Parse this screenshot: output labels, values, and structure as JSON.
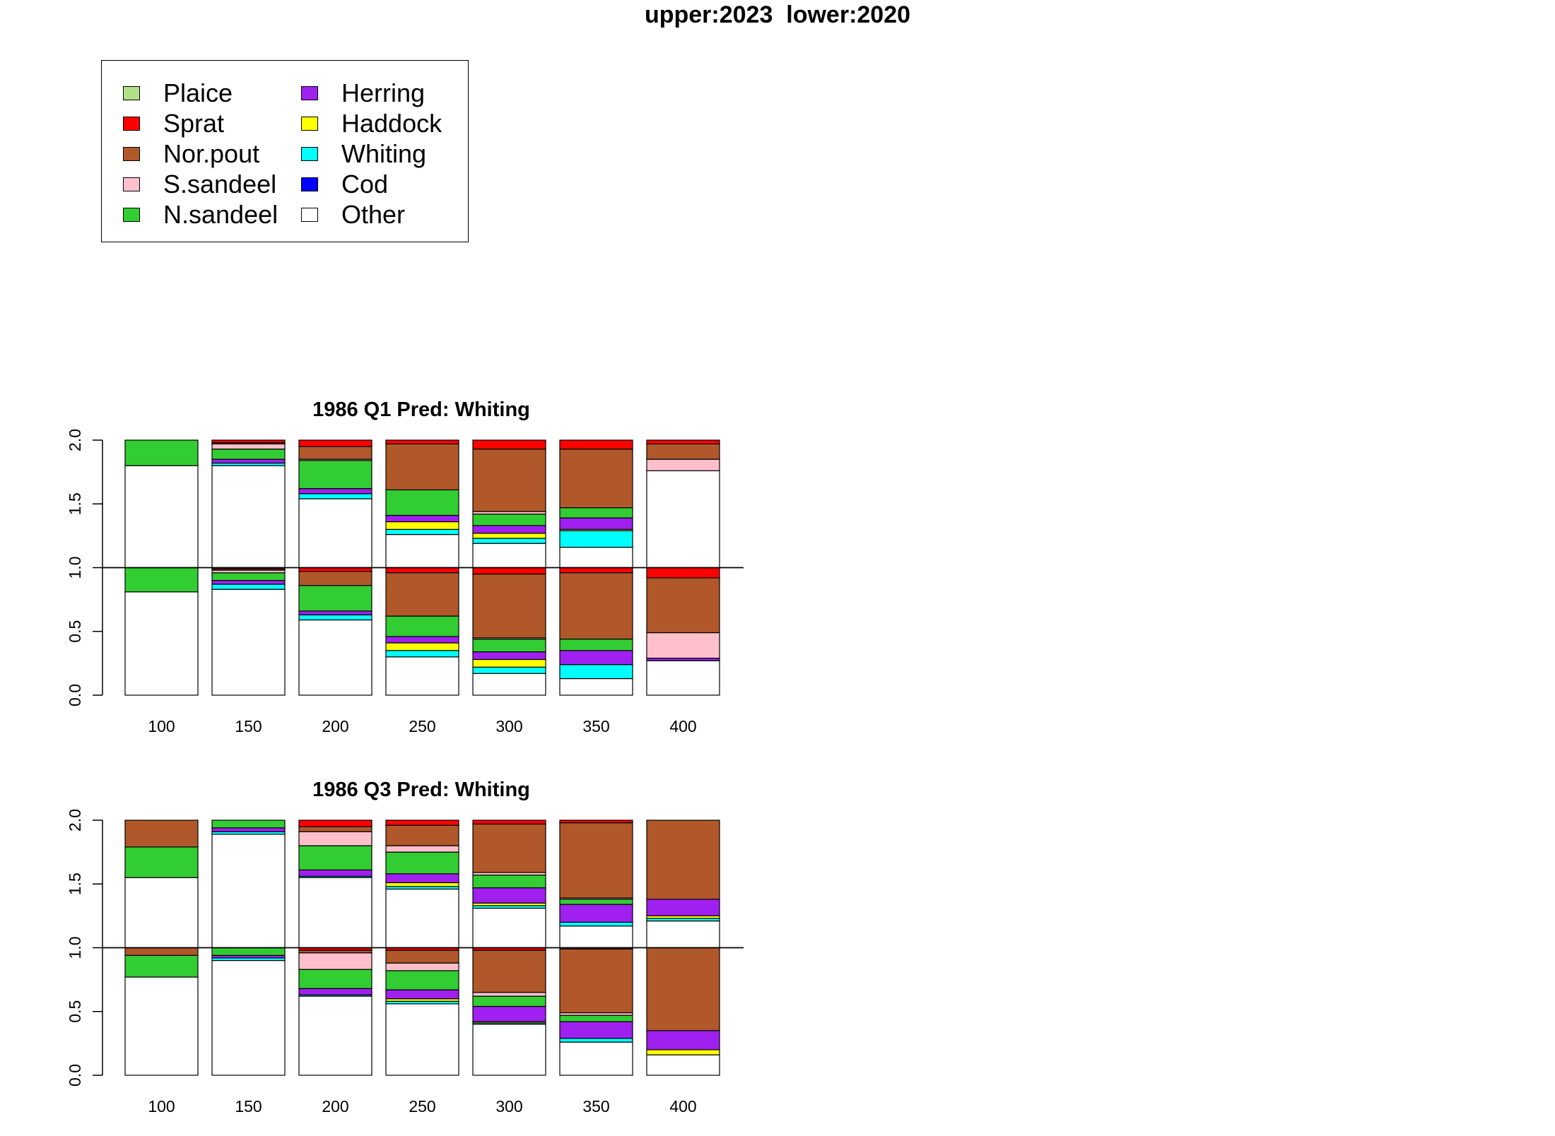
{
  "title": "upper:2023  lower:2020",
  "colors": {
    "Plaice": "#b2df8a",
    "Sprat": "#ff0000",
    "Nor.pout": "#b0582a",
    "S.sandeel": "#ffc0cb",
    "N.sandeel": "#32cd32",
    "Herring": "#a020f0",
    "Haddock": "#ffff00",
    "Whiting": "#00ffff",
    "Cod": "#0000ff",
    "Other": "#ffffff"
  },
  "legend": {
    "col1": [
      "Plaice",
      "Sprat",
      "Nor.pout",
      "S.sandeel",
      "N.sandeel"
    ],
    "col2": [
      "Herring",
      "Haddock",
      "Whiting",
      "Cod",
      "Other"
    ]
  },
  "chart_data": [
    {
      "type": "bar",
      "title": "1986 Q1  Pred: Whiting",
      "categories": [
        "100",
        "150",
        "200",
        "250",
        "300",
        "350",
        "400"
      ],
      "ylim": [
        0,
        2
      ],
      "yticks": [
        "0.0",
        "0.5",
        "1.0",
        "1.5",
        "2.0"
      ],
      "stack_order": [
        "Other",
        "Cod",
        "Whiting",
        "Haddock",
        "Herring",
        "N.sandeel",
        "S.sandeel",
        "Nor.pout",
        "Sprat",
        "Plaice"
      ],
      "upper_label": "2023",
      "lower_label": "2020",
      "upper": [
        {
          "Other": 0.8,
          "Whiting": 0.0,
          "Haddock": 0.0,
          "Herring": 0.0,
          "N.sandeel": 0.2,
          "S.sandeel": 0.0,
          "Nor.pout": 0.0,
          "Sprat": 0.0
        },
        {
          "Other": 0.8,
          "Whiting": 0.02,
          "Haddock": 0.0,
          "Herring": 0.03,
          "N.sandeel": 0.08,
          "S.sandeel": 0.04,
          "Nor.pout": 0.01,
          "Sprat": 0.02
        },
        {
          "Other": 0.54,
          "Whiting": 0.04,
          "Haddock": 0.0,
          "Herring": 0.04,
          "N.sandeel": 0.22,
          "S.sandeel": 0.01,
          "Nor.pout": 0.1,
          "Sprat": 0.05
        },
        {
          "Other": 0.26,
          "Whiting": 0.04,
          "Haddock": 0.06,
          "Herring": 0.05,
          "N.sandeel": 0.2,
          "S.sandeel": 0.0,
          "Nor.pout": 0.36,
          "Sprat": 0.03
        },
        {
          "Other": 0.19,
          "Whiting": 0.04,
          "Haddock": 0.04,
          "Herring": 0.06,
          "N.sandeel": 0.09,
          "S.sandeel": 0.02,
          "Nor.pout": 0.49,
          "Sprat": 0.07
        },
        {
          "Other": 0.16,
          "Whiting": 0.13,
          "Haddock": 0.01,
          "Herring": 0.09,
          "N.sandeel": 0.08,
          "S.sandeel": 0.0,
          "Nor.pout": 0.46,
          "Sprat": 0.07
        },
        {
          "Other": 0.76,
          "Whiting": 0.0,
          "Haddock": 0.0,
          "Herring": 0.0,
          "N.sandeel": 0.0,
          "S.sandeel": 0.09,
          "Nor.pout": 0.12,
          "Sprat": 0.03
        }
      ],
      "lower": [
        {
          "Other": 0.81,
          "Whiting": 0.0,
          "Haddock": 0.0,
          "Herring": 0.0,
          "N.sandeel": 0.19,
          "S.sandeel": 0.0,
          "Nor.pout": 0.0,
          "Sprat": 0.0
        },
        {
          "Other": 0.83,
          "Whiting": 0.04,
          "Haddock": 0.0,
          "Herring": 0.03,
          "N.sandeel": 0.06,
          "S.sandeel": 0.02,
          "Nor.pout": 0.01,
          "Sprat": 0.01
        },
        {
          "Other": 0.59,
          "Whiting": 0.04,
          "Haddock": 0.0,
          "Herring": 0.03,
          "N.sandeel": 0.2,
          "S.sandeel": 0.0,
          "Nor.pout": 0.11,
          "Sprat": 0.03
        },
        {
          "Other": 0.3,
          "Whiting": 0.05,
          "Haddock": 0.06,
          "Herring": 0.05,
          "N.sandeel": 0.16,
          "S.sandeel": 0.0,
          "Nor.pout": 0.34,
          "Sprat": 0.04
        },
        {
          "Other": 0.17,
          "Whiting": 0.05,
          "Haddock": 0.06,
          "Herring": 0.06,
          "N.sandeel": 0.1,
          "S.sandeel": 0.01,
          "Nor.pout": 0.5,
          "Sprat": 0.05
        },
        {
          "Other": 0.13,
          "Whiting": 0.11,
          "Haddock": 0.0,
          "Herring": 0.11,
          "N.sandeel": 0.09,
          "S.sandeel": 0.0,
          "Nor.pout": 0.52,
          "Sprat": 0.04
        },
        {
          "Other": 0.27,
          "Whiting": 0.0,
          "Haddock": 0.0,
          "Herring": 0.02,
          "N.sandeel": 0.0,
          "S.sandeel": 0.2,
          "Nor.pout": 0.43,
          "Sprat": 0.08
        }
      ]
    },
    {
      "type": "bar",
      "title": "1986 Q3  Pred: Whiting",
      "categories": [
        "100",
        "150",
        "200",
        "250",
        "300",
        "350",
        "400"
      ],
      "ylim": [
        0,
        2
      ],
      "yticks": [
        "0.0",
        "0.5",
        "1.0",
        "1.5",
        "2.0"
      ],
      "stack_order": [
        "Other",
        "Cod",
        "Whiting",
        "Haddock",
        "Herring",
        "N.sandeel",
        "S.sandeel",
        "Nor.pout",
        "Sprat",
        "Plaice"
      ],
      "upper_label": "2023",
      "lower_label": "2020",
      "upper": [
        {
          "Other": 0.55,
          "Whiting": 0.0,
          "Haddock": 0.0,
          "Herring": 0.0,
          "N.sandeel": 0.24,
          "S.sandeel": 0.0,
          "Nor.pout": 0.21,
          "Sprat": 0.0
        },
        {
          "Other": 0.89,
          "Whiting": 0.02,
          "Haddock": 0.0,
          "Herring": 0.03,
          "N.sandeel": 0.06,
          "S.sandeel": 0.0,
          "Nor.pout": 0.0,
          "Sprat": 0.0
        },
        {
          "Other": 0.55,
          "Whiting": 0.01,
          "Haddock": 0.0,
          "Herring": 0.05,
          "N.sandeel": 0.19,
          "S.sandeel": 0.11,
          "Nor.pout": 0.04,
          "Sprat": 0.05
        },
        {
          "Other": 0.46,
          "Whiting": 0.02,
          "Haddock": 0.03,
          "Herring": 0.07,
          "N.sandeel": 0.17,
          "S.sandeel": 0.05,
          "Nor.pout": 0.16,
          "Sprat": 0.04
        },
        {
          "Other": 0.31,
          "Whiting": 0.02,
          "Haddock": 0.02,
          "Herring": 0.12,
          "N.sandeel": 0.1,
          "S.sandeel": 0.02,
          "Nor.pout": 0.38,
          "Sprat": 0.03
        },
        {
          "Other": 0.17,
          "Whiting": 0.03,
          "Haddock": 0.0,
          "Herring": 0.14,
          "N.sandeel": 0.04,
          "S.sandeel": 0.01,
          "Nor.pout": 0.59,
          "Sprat": 0.02
        },
        {
          "Other": 0.21,
          "Whiting": 0.02,
          "Haddock": 0.02,
          "Herring": 0.13,
          "N.sandeel": 0.0,
          "S.sandeel": 0.0,
          "Nor.pout": 0.62,
          "Sprat": 0.0
        }
      ],
      "lower": [
        {
          "Other": 0.77,
          "Whiting": 0.0,
          "Haddock": 0.0,
          "Herring": 0.0,
          "N.sandeel": 0.17,
          "S.sandeel": 0.0,
          "Nor.pout": 0.06,
          "Sprat": 0.0
        },
        {
          "Other": 0.9,
          "Whiting": 0.02,
          "Haddock": 0.0,
          "Herring": 0.02,
          "N.sandeel": 0.06,
          "S.sandeel": 0.0,
          "Nor.pout": 0.0,
          "Sprat": 0.0
        },
        {
          "Other": 0.62,
          "Whiting": 0.01,
          "Haddock": 0.0,
          "Herring": 0.05,
          "N.sandeel": 0.15,
          "S.sandeel": 0.13,
          "Nor.pout": 0.02,
          "Sprat": 0.02
        },
        {
          "Other": 0.56,
          "Whiting": 0.02,
          "Haddock": 0.02,
          "Herring": 0.07,
          "N.sandeel": 0.15,
          "S.sandeel": 0.06,
          "Nor.pout": 0.1,
          "Sprat": 0.02
        },
        {
          "Other": 0.4,
          "Whiting": 0.01,
          "Haddock": 0.01,
          "Herring": 0.12,
          "N.sandeel": 0.08,
          "S.sandeel": 0.03,
          "Nor.pout": 0.33,
          "Sprat": 0.02
        },
        {
          "Other": 0.26,
          "Whiting": 0.03,
          "Haddock": 0.0,
          "Herring": 0.13,
          "N.sandeel": 0.05,
          "S.sandeel": 0.02,
          "Nor.pout": 0.5,
          "Sprat": 0.01
        },
        {
          "Other": 0.16,
          "Whiting": 0.0,
          "Haddock": 0.04,
          "Herring": 0.15,
          "N.sandeel": 0.0,
          "S.sandeel": 0.0,
          "Nor.pout": 0.65,
          "Sprat": 0.0
        }
      ]
    }
  ]
}
